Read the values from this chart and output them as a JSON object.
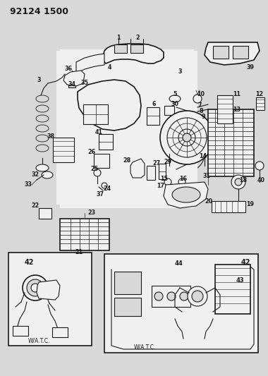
{
  "title": "92124 1500",
  "bg_color": "#d8d8d8",
  "fg_color": "#1a1a1a",
  "white": "#f0f0f0",
  "fig_width": 3.8,
  "fig_height": 5.33,
  "dpi": 100
}
